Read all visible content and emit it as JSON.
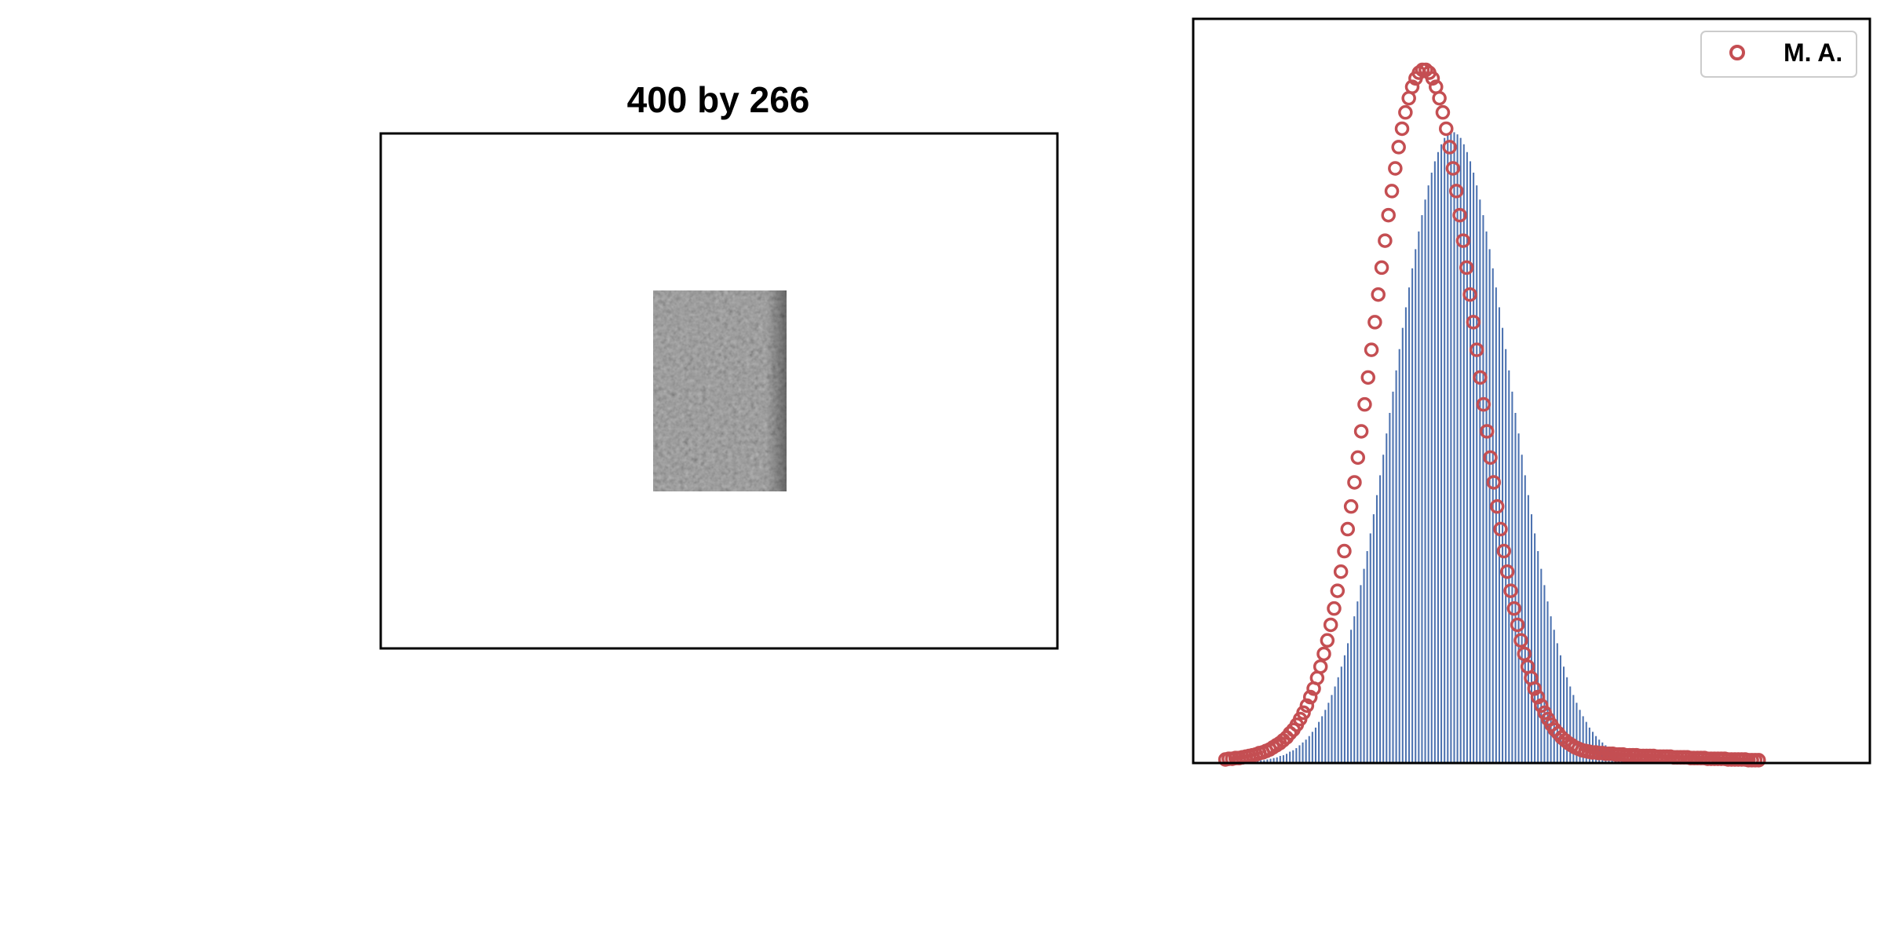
{
  "figure": {
    "left_panel": {
      "title": "400 by 266",
      "image_kind": "grayscale-noise-texture"
    },
    "colors": {
      "bars": "#4c72b0",
      "marker": "#c44e52",
      "frame": "#000000",
      "legend_border": "#cccccc"
    }
  },
  "chart_data": [
    {
      "type": "image",
      "title": "400 by 266",
      "xlabel": "",
      "ylabel": "",
      "content": "grayscale noise patch centered in the panel"
    },
    {
      "type": "bar+scatter",
      "title": "",
      "xlabel": "",
      "ylabel": "",
      "xlim": [
        -4.0,
        6.5
      ],
      "ylim": [
        0,
        1.05
      ],
      "grid": false,
      "legend": {
        "placement": "top-right",
        "entries": [
          "M. A."
        ]
      },
      "bars": {
        "x_start": -3.0,
        "x_step": 0.05,
        "values": [
          0.003,
          0.004,
          0.004,
          0.005,
          0.006,
          0.007,
          0.008,
          0.01,
          0.011,
          0.013,
          0.016,
          0.018,
          0.021,
          0.025,
          0.029,
          0.033,
          0.038,
          0.044,
          0.05,
          0.058,
          0.066,
          0.075,
          0.085,
          0.096,
          0.108,
          0.121,
          0.136,
          0.152,
          0.169,
          0.188,
          0.207,
          0.228,
          0.251,
          0.274,
          0.299,
          0.324,
          0.351,
          0.378,
          0.406,
          0.435,
          0.465,
          0.494,
          0.524,
          0.554,
          0.584,
          0.614,
          0.643,
          0.671,
          0.698,
          0.725,
          0.75,
          0.773,
          0.795,
          0.815,
          0.833,
          0.849,
          0.862,
          0.873,
          0.882,
          0.887,
          0.89,
          0.89,
          0.887,
          0.882,
          0.873,
          0.862,
          0.849,
          0.833,
          0.815,
          0.795,
          0.773,
          0.75,
          0.725,
          0.698,
          0.671,
          0.643,
          0.614,
          0.584,
          0.554,
          0.524,
          0.494,
          0.465,
          0.435,
          0.406,
          0.378,
          0.351,
          0.324,
          0.299,
          0.274,
          0.251,
          0.228,
          0.207,
          0.188,
          0.169,
          0.152,
          0.136,
          0.121,
          0.108,
          0.096,
          0.085,
          0.075,
          0.066,
          0.058,
          0.05,
          0.044,
          0.038,
          0.033,
          0.029,
          0.025,
          0.021,
          0.018,
          0.016,
          0.013,
          0.011,
          0.01,
          0.008,
          0.007,
          0.006,
          0.005,
          0.004,
          0.004
        ]
      },
      "series": [
        {
          "name": "M. A.",
          "marker": "open-circle",
          "x_start": -3.5,
          "x_step": 0.0527,
          "values": [
            0.005,
            0.006,
            0.006,
            0.007,
            0.007,
            0.008,
            0.009,
            0.01,
            0.011,
            0.012,
            0.014,
            0.015,
            0.017,
            0.019,
            0.022,
            0.025,
            0.028,
            0.032,
            0.036,
            0.042,
            0.047,
            0.054,
            0.062,
            0.071,
            0.081,
            0.093,
            0.105,
            0.12,
            0.136,
            0.154,
            0.173,
            0.195,
            0.218,
            0.243,
            0.27,
            0.299,
            0.33,
            0.362,
            0.396,
            0.431,
            0.468,
            0.506,
            0.544,
            0.583,
            0.622,
            0.661,
            0.699,
            0.737,
            0.773,
            0.807,
            0.839,
            0.869,
            0.895,
            0.918,
            0.938,
            0.954,
            0.966,
            0.974,
            0.978,
            0.978,
            0.974,
            0.966,
            0.954,
            0.938,
            0.918,
            0.895,
            0.869,
            0.839,
            0.807,
            0.773,
            0.737,
            0.699,
            0.661,
            0.622,
            0.583,
            0.544,
            0.506,
            0.468,
            0.431,
            0.396,
            0.362,
            0.33,
            0.299,
            0.27,
            0.243,
            0.218,
            0.195,
            0.173,
            0.154,
            0.136,
            0.12,
            0.105,
            0.093,
            0.081,
            0.071,
            0.062,
            0.054,
            0.047,
            0.042,
            0.036,
            0.032,
            0.028,
            0.025,
            0.022,
            0.02,
            0.018,
            0.017,
            0.016,
            0.015,
            0.015,
            0.014,
            0.014,
            0.013,
            0.013,
            0.013,
            0.012,
            0.012,
            0.012,
            0.011,
            0.011,
            0.011,
            0.011,
            0.01,
            0.01,
            0.01,
            0.01,
            0.01,
            0.009,
            0.009,
            0.009,
            0.009,
            0.009,
            0.008,
            0.008,
            0.008,
            0.008,
            0.008,
            0.007,
            0.007,
            0.007,
            0.007,
            0.007,
            0.006,
            0.006,
            0.006,
            0.006,
            0.006,
            0.006,
            0.005,
            0.005,
            0.005,
            0.005,
            0.005,
            0.005,
            0.004,
            0.004,
            0.004,
            0.004
          ]
        }
      ]
    }
  ]
}
